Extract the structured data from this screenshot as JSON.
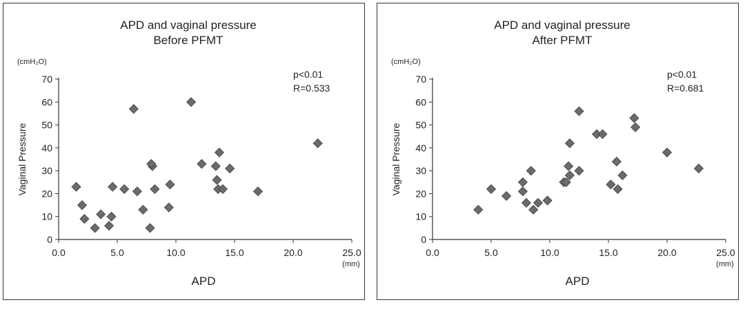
{
  "chart_data": [
    {
      "type": "scatter",
      "title": [
        "APD and vaginal pressure",
        "Before PFMT"
      ],
      "xlabel": "APD",
      "x_unit": "(mm)",
      "ylabel": "Vaginal Pressure",
      "y_unit": "(cmH₂O)",
      "xlim": [
        0,
        25
      ],
      "ylim": [
        0,
        70
      ],
      "xticks": [
        "0.0",
        "5.0",
        "10.0",
        "15.0",
        "20.0",
        "25.0"
      ],
      "yticks": [
        "0",
        "10",
        "20",
        "30",
        "40",
        "50",
        "60",
        "70"
      ],
      "annotations": [
        "p<0.01",
        "R=0.533"
      ],
      "grid": false,
      "marker_color": "#6b6b6b",
      "points": [
        [
          1.5,
          23
        ],
        [
          2.0,
          15
        ],
        [
          2.2,
          9
        ],
        [
          3.1,
          5
        ],
        [
          3.6,
          11
        ],
        [
          4.3,
          6
        ],
        [
          4.5,
          10
        ],
        [
          4.6,
          23
        ],
        [
          5.6,
          22
        ],
        [
          6.4,
          57
        ],
        [
          6.7,
          21
        ],
        [
          7.2,
          13
        ],
        [
          7.8,
          5
        ],
        [
          8.0,
          32
        ],
        [
          7.9,
          33
        ],
        [
          8.2,
          22
        ],
        [
          9.5,
          24
        ],
        [
          9.4,
          14
        ],
        [
          11.3,
          60
        ],
        [
          12.2,
          33
        ],
        [
          13.4,
          32
        ],
        [
          13.5,
          26
        ],
        [
          13.6,
          22
        ],
        [
          13.7,
          38
        ],
        [
          14.0,
          22
        ],
        [
          14.6,
          31
        ],
        [
          17.0,
          21
        ],
        [
          22.1,
          42
        ]
      ]
    },
    {
      "type": "scatter",
      "title": [
        "APD and vaginal pressure",
        "After PFMT"
      ],
      "xlabel": "APD",
      "x_unit": "(mm)",
      "ylabel": "Vaginal Pressure",
      "y_unit": "(cmH₂O)",
      "xlim": [
        0,
        25
      ],
      "ylim": [
        0,
        70
      ],
      "xticks": [
        "0.0",
        "5.0",
        "10.0",
        "15.0",
        "20.0",
        "25.0"
      ],
      "yticks": [
        "0",
        "10",
        "20",
        "30",
        "40",
        "50",
        "60",
        "70"
      ],
      "annotations": [
        "p<0.01",
        "R=0.681"
      ],
      "grid": false,
      "marker_color": "#6b6b6b",
      "points": [
        [
          3.9,
          13
        ],
        [
          5.0,
          22
        ],
        [
          6.3,
          19
        ],
        [
          7.7,
          25
        ],
        [
          7.7,
          21
        ],
        [
          8.0,
          16
        ],
        [
          8.4,
          30
        ],
        [
          8.6,
          13
        ],
        [
          9.0,
          16
        ],
        [
          9.8,
          17
        ],
        [
          11.2,
          25
        ],
        [
          11.4,
          25
        ],
        [
          11.6,
          32
        ],
        [
          11.7,
          28
        ],
        [
          11.7,
          42
        ],
        [
          12.5,
          56
        ],
        [
          12.5,
          30
        ],
        [
          14.0,
          46
        ],
        [
          14.5,
          46
        ],
        [
          15.2,
          24
        ],
        [
          15.7,
          34
        ],
        [
          15.8,
          22
        ],
        [
          16.2,
          28
        ],
        [
          17.2,
          53
        ],
        [
          17.3,
          49
        ],
        [
          20.0,
          38
        ],
        [
          22.7,
          31
        ]
      ]
    }
  ]
}
